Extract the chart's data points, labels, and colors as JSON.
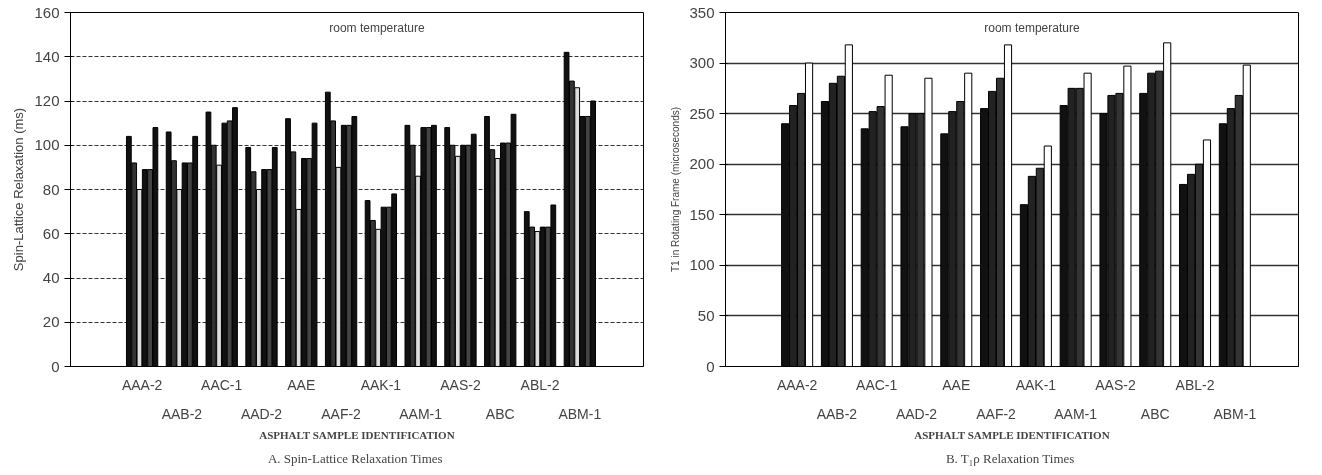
{
  "chart_data": [
    {
      "type": "bar",
      "title": "A.  Spin-Lattice Relaxation Times",
      "xlabel": "ASPHALT SAMPLE IDENTIFICATION",
      "ylabel": "Spin-Lattice Relaxation (ms)",
      "annotations": [
        "room temperature"
      ],
      "categories": [
        "AAA-2",
        "AAB-2",
        "AAC-1",
        "AAD-2",
        "AAE",
        "AAF-2",
        "AAK-1",
        "AAM-1",
        "AAS-2",
        "ABC",
        "ABL-2",
        "ABM-1"
      ],
      "ylim": [
        0,
        160
      ],
      "yticks": [
        0,
        20,
        40,
        60,
        80,
        100,
        120,
        140,
        160
      ],
      "grid": "y",
      "series": [
        {
          "color": "#111111",
          "values": [
            104,
            106,
            115,
            99,
            112,
            124,
            75,
            109,
            108,
            113,
            70,
            142
          ]
        },
        {
          "color": "#333333",
          "values": [
            92,
            93,
            100,
            88,
            97,
            111,
            66,
            100,
            100,
            98,
            63,
            129
          ]
        },
        {
          "color": "#dddddd",
          "values": [
            80,
            80,
            91,
            80,
            71,
            90,
            62,
            86,
            95,
            94,
            61,
            126
          ]
        },
        {
          "color": "#111111",
          "values": [
            89,
            92,
            110,
            89,
            94,
            109,
            72,
            108,
            100,
            101,
            63,
            113
          ]
        },
        {
          "color": "#444444",
          "values": [
            89,
            92,
            111,
            89,
            94,
            109,
            72,
            108,
            100,
            101,
            63,
            113
          ]
        },
        {
          "color": "#111111",
          "values": [
            108,
            104,
            117,
            99,
            110,
            113,
            78,
            109,
            105,
            114,
            73,
            120
          ]
        }
      ]
    },
    {
      "type": "bar",
      "title": "B.  T₁ρ Relaxation Times",
      "xlabel": "ASPHALT SAMPLE IDENTIFICATION",
      "ylabel": "T1 in Rotating Frame (microseconds)",
      "annotations": [
        "room temperature"
      ],
      "categories": [
        "AAA-2",
        "AAB-2",
        "AAC-1",
        "AAD-2",
        "AAE",
        "AAF-2",
        "AAK-1",
        "AAM-1",
        "AAS-2",
        "ABC",
        "ABL-2",
        "ABM-1"
      ],
      "ylim": [
        0,
        350
      ],
      "yticks": [
        0,
        50,
        100,
        150,
        200,
        250,
        300,
        350
      ],
      "grid": "y",
      "series": [
        {
          "color": "#111111",
          "values": [
            240,
            262,
            235,
            237,
            230,
            255,
            160,
            258,
            250,
            270,
            180,
            240
          ]
        },
        {
          "color": "#222222",
          "values": [
            258,
            280,
            252,
            250,
            252,
            272,
            188,
            275,
            268,
            290,
            190,
            255
          ]
        },
        {
          "color": "#333333",
          "values": [
            270,
            287,
            257,
            250,
            262,
            285,
            196,
            275,
            270,
            292,
            200,
            268
          ]
        },
        {
          "color": "#ffffff",
          "values": [
            300,
            318,
            288,
            285,
            290,
            318,
            218,
            290,
            297,
            320,
            224,
            298
          ]
        }
      ]
    }
  ]
}
